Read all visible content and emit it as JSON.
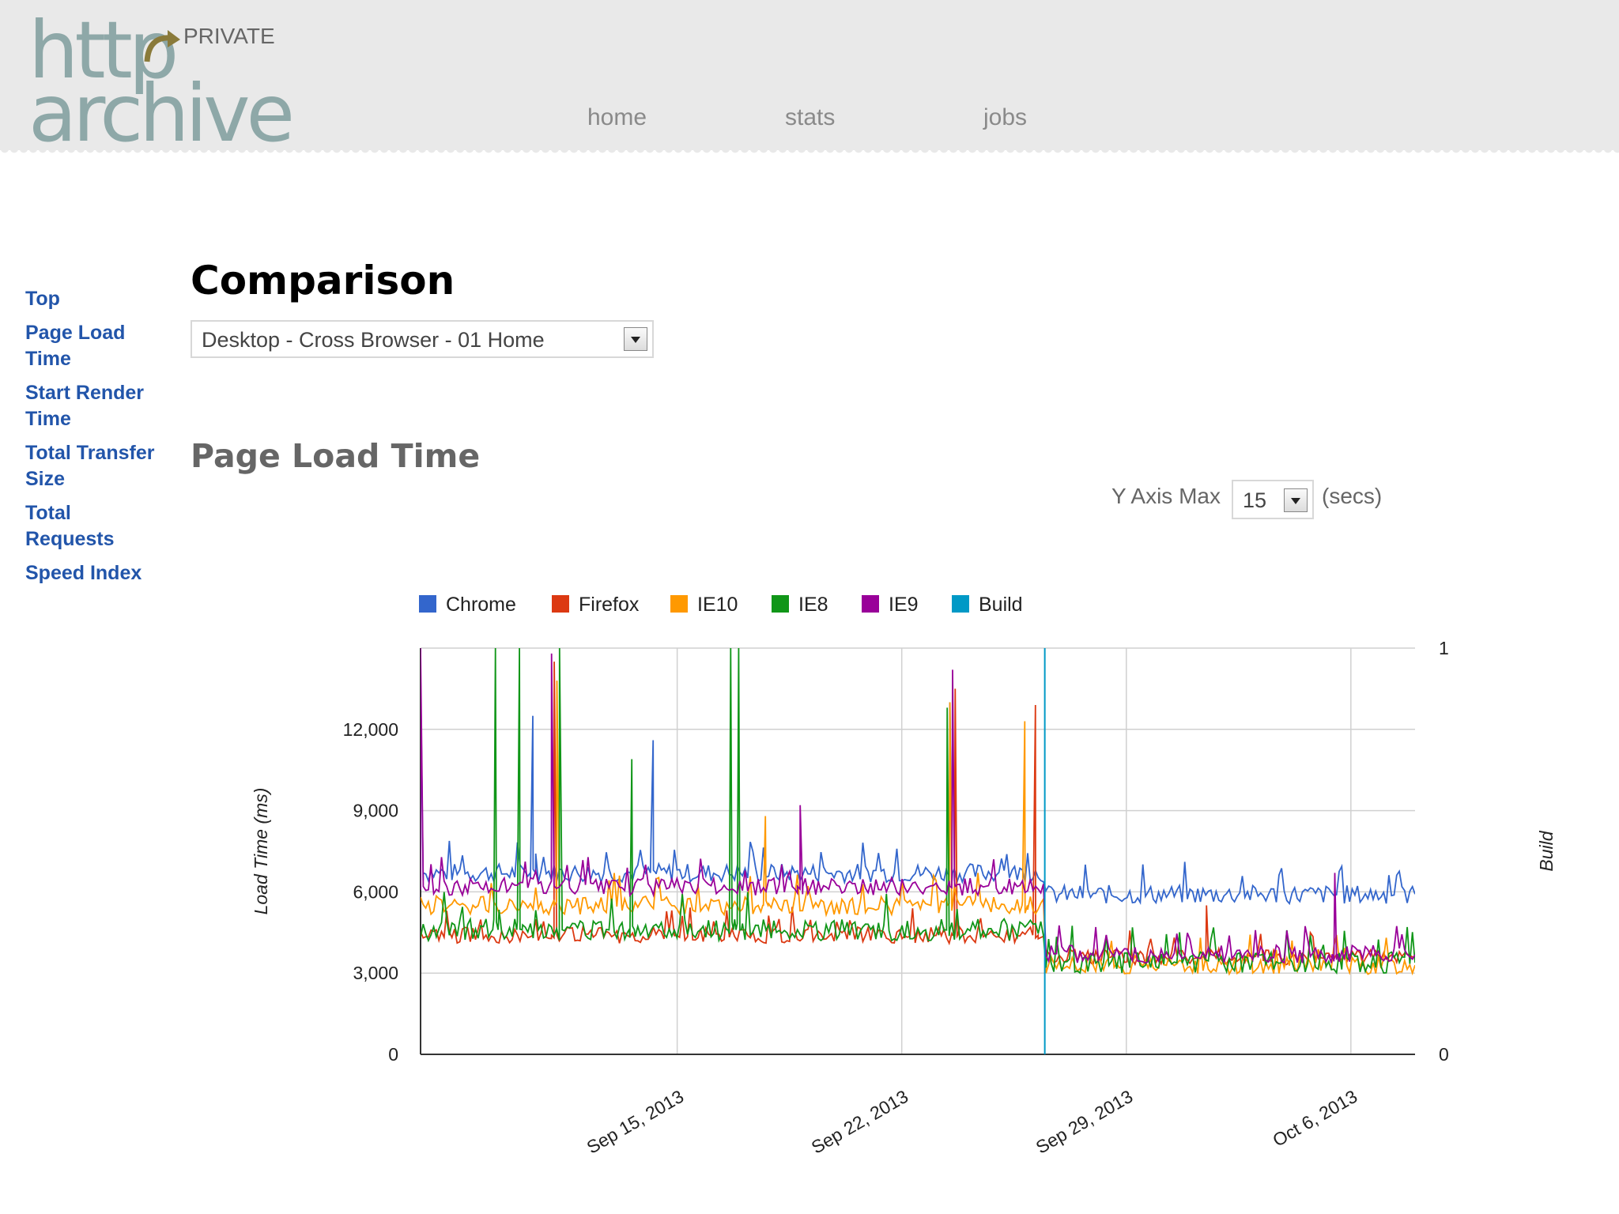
{
  "header": {
    "logo_top": "http",
    "logo_bottom": "archive",
    "badge": "PRIVATE",
    "nav": [
      {
        "label": "home"
      },
      {
        "label": "stats"
      },
      {
        "label": "jobs"
      }
    ]
  },
  "sidebar": {
    "items": [
      {
        "label": "Top"
      },
      {
        "label": "Page Load Time"
      },
      {
        "label": "Start Render Time"
      },
      {
        "label": "Total Transfer Size"
      },
      {
        "label": "Total Requests"
      },
      {
        "label": "Speed Index"
      }
    ]
  },
  "main": {
    "title": "Comparison",
    "selected_test": "Desktop - Cross Browser - 01 Home",
    "section_title": "Page Load Time",
    "y_axis_max_label": "Y Axis Max",
    "y_axis_max_value": "15",
    "y_axis_max_unit": "(secs)"
  },
  "chart_data": {
    "type": "line",
    "ylabel": "Load Time (ms)",
    "y2label": "Build",
    "ylim": [
      0,
      15000
    ],
    "y2lim": [
      0,
      1
    ],
    "y_ticks": [
      0,
      3000,
      6000,
      9000,
      12000
    ],
    "y_tick_labels": [
      "0",
      "3,000",
      "6,000",
      "9,000",
      "12,000"
    ],
    "y2_tick_labels": [
      "0",
      "1"
    ],
    "x_start": "2013-09-07",
    "x_end": "2013-10-08",
    "x_ticks": [
      "2013-09-15",
      "2013-09-22",
      "2013-09-29",
      "2013-10-06"
    ],
    "x_tick_labels": [
      "Sep 15, 2013",
      "Sep 22, 2013",
      "Sep 29, 2013",
      "Oct 6, 2013"
    ],
    "legend_position": "top",
    "build_marker": {
      "date": "2013-09-26 11:00",
      "value": 1,
      "color": "#0099c6"
    },
    "series": [
      {
        "name": "Chrome",
        "color": "#3366cc",
        "before": 6700,
        "after": 5900,
        "noise": 350,
        "spikes": [
          [
            "2013-09-07 00:00",
            14000
          ],
          [
            "2013-09-10 12:00",
            12500
          ],
          [
            "2013-09-14 06:00",
            11600
          ],
          [
            "2013-09-23 12:00",
            13000
          ]
        ]
      },
      {
        "name": "Firefox",
        "color": "#dc3912",
        "before": 4400,
        "after": 3600,
        "noise": 300,
        "spikes": [
          [
            "2013-09-11 04:00",
            14500
          ],
          [
            "2013-09-23 16:00",
            13500
          ],
          [
            "2013-09-26 04:00",
            12900
          ],
          [
            "2013-10-01 12:00",
            5500
          ]
        ]
      },
      {
        "name": "IE10",
        "color": "#ff9900",
        "before": 5500,
        "after": 3300,
        "noise": 350,
        "spikes": [
          [
            "2013-09-11 06:00",
            13800
          ],
          [
            "2013-09-17 18:00",
            8800
          ],
          [
            "2013-09-23 12:00",
            13000
          ],
          [
            "2013-09-25 20:00",
            12300
          ]
        ]
      },
      {
        "name": "IE8",
        "color": "#109618",
        "before": 4600,
        "after": 3400,
        "noise": 400,
        "spikes": [
          [
            "2013-09-09 08:00",
            15000
          ],
          [
            "2013-09-10 02:00",
            15000
          ],
          [
            "2013-09-11 08:00",
            15000
          ],
          [
            "2013-09-13 14:00",
            10900
          ],
          [
            "2013-09-16 16:00",
            15000
          ],
          [
            "2013-09-16 22:00",
            15000
          ],
          [
            "2013-09-23 10:00",
            12800
          ]
        ]
      },
      {
        "name": "IE9",
        "color": "#990099",
        "before": 6200,
        "after": 3700,
        "noise": 330,
        "spikes": [
          [
            "2013-09-07 00:00",
            15000
          ],
          [
            "2013-09-11 02:00",
            14800
          ],
          [
            "2013-09-18 20:00",
            9200
          ],
          [
            "2013-09-23 14:00",
            14200
          ],
          [
            "2013-10-05 12:00",
            6700
          ]
        ]
      },
      {
        "name": "Build",
        "color": "#0099c6"
      }
    ]
  }
}
